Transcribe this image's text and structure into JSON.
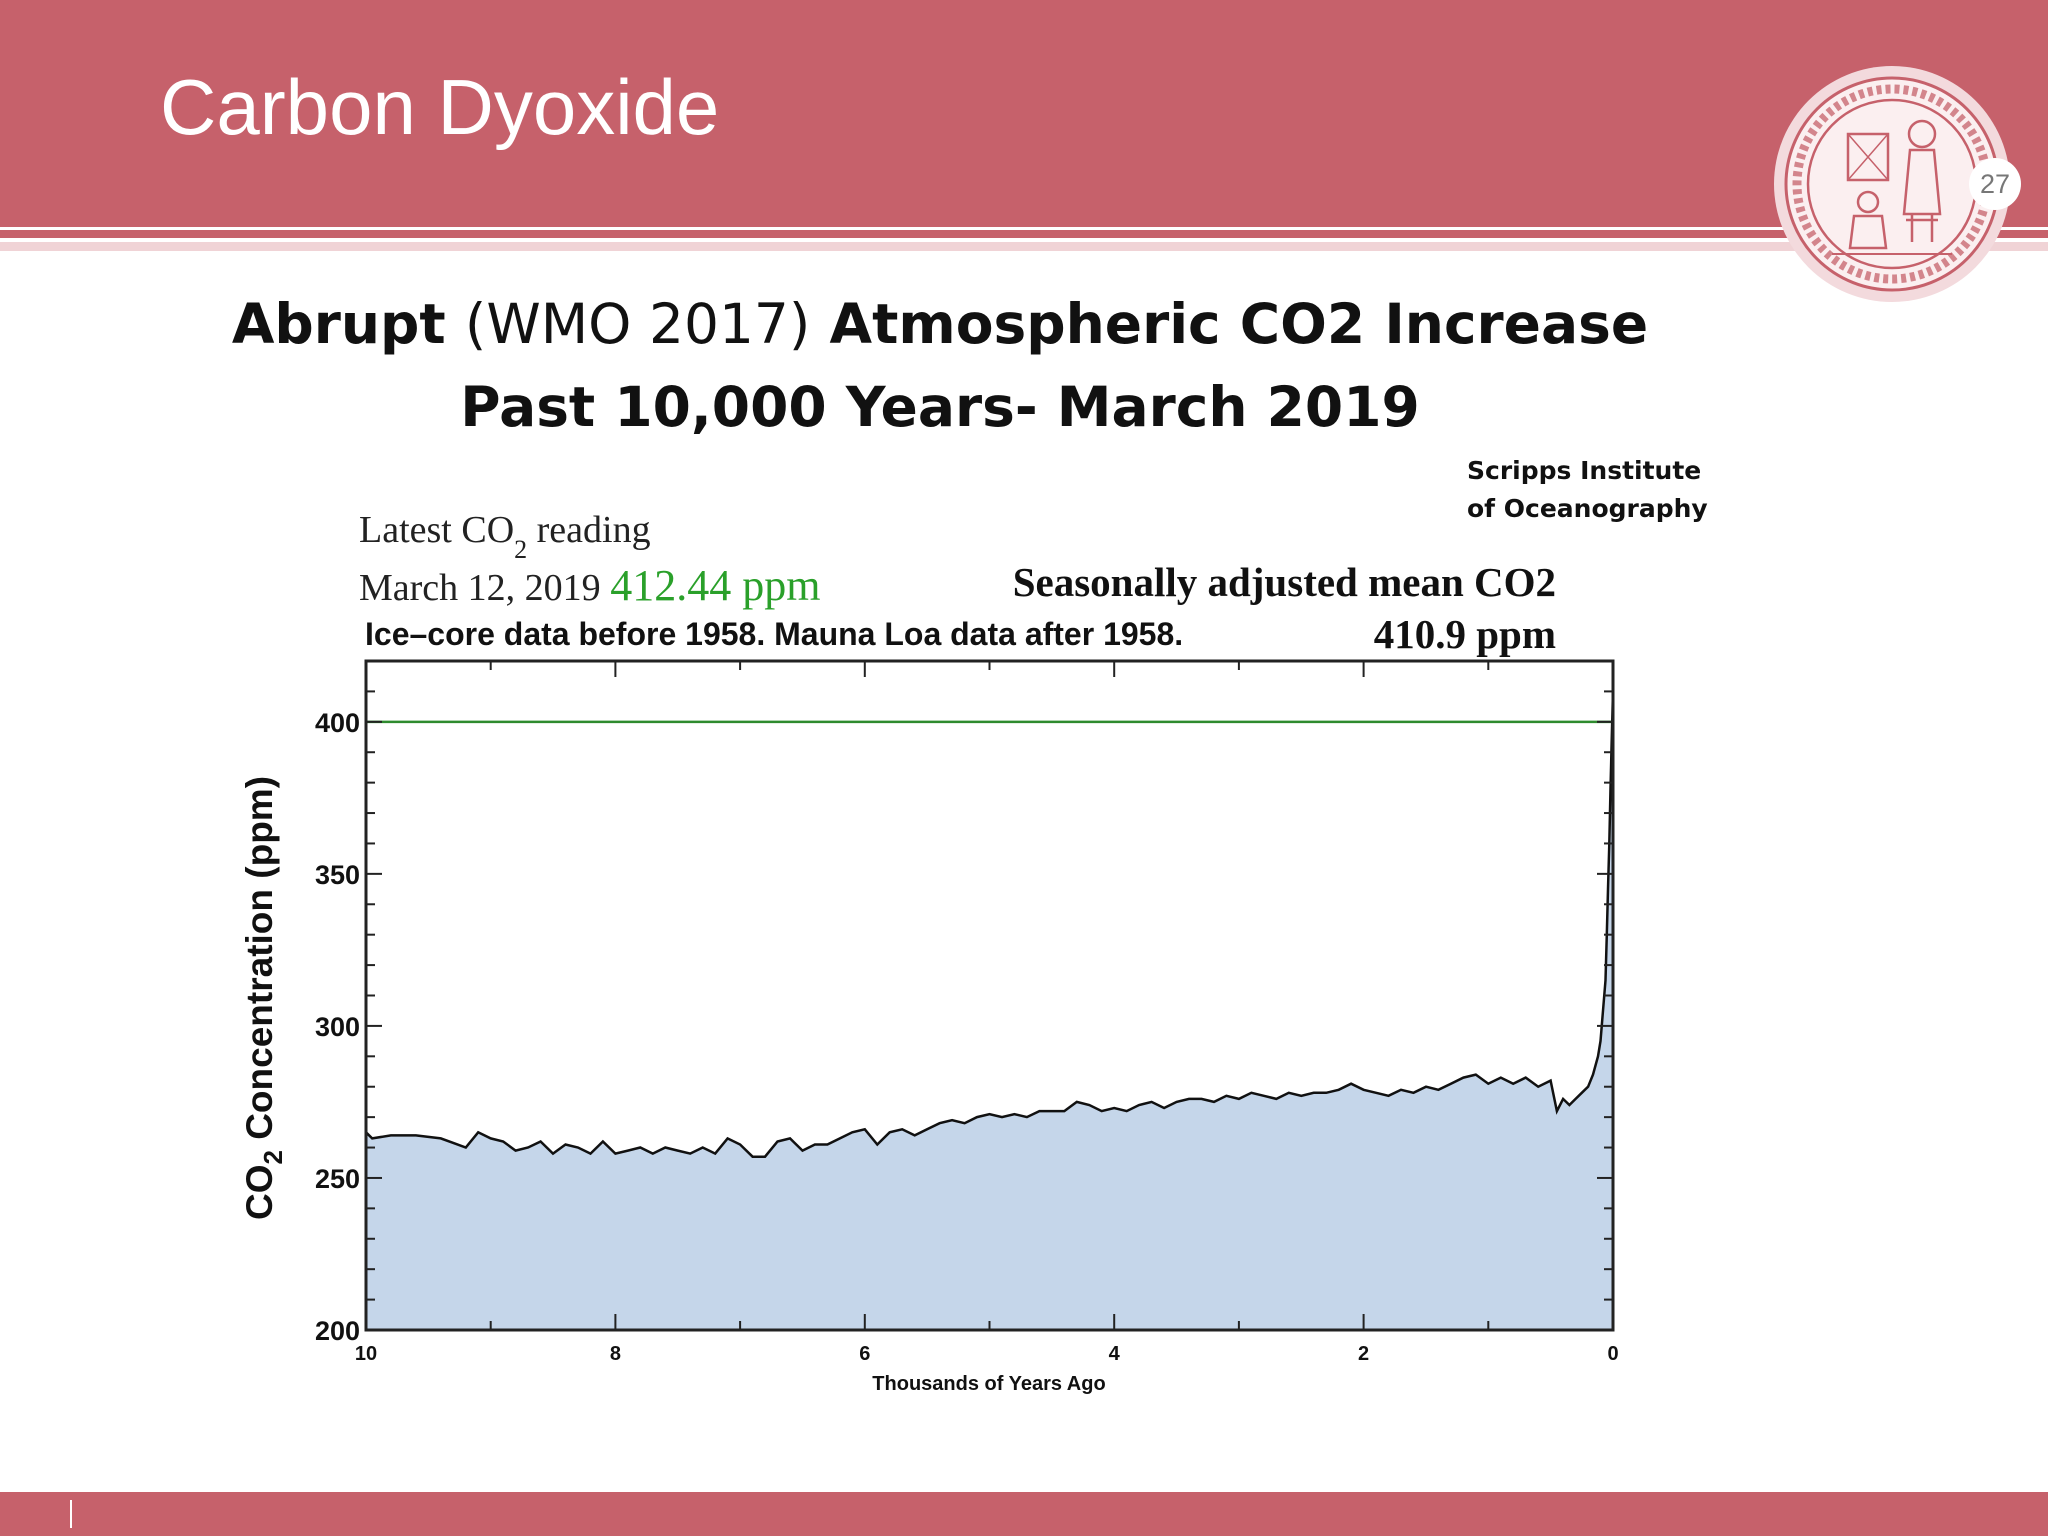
{
  "slide": {
    "title": "Carbon Dyoxide",
    "page_number": "27",
    "header_color": "#c6616b"
  },
  "figure": {
    "title_bold_1": "Abrupt",
    "title_light": "(WMO 2017)",
    "title_bold_2": "Atmospheric CO2 Increase",
    "title_line_2": "Past 10,000 Years- March 2019",
    "source_line_1": "Scripps Institute",
    "source_line_2": "of Oceanography",
    "latest_label_a": "Latest CO",
    "latest_label_sub": "2",
    "latest_label_b": " reading",
    "latest_date": "March 12, 2019",
    "latest_value": "412.44 ppm",
    "seasonal_label": "Seasonally adjusted mean CO2",
    "seasonal_value": "410.9 ppm",
    "data_note": "Ice–core data before 1958. Mauna Loa data after 1958."
  },
  "chart_data": {
    "type": "area",
    "title": "",
    "xlabel": "Thousands of Years Ago",
    "ylabel_a": "CO",
    "ylabel_sub": "2",
    "ylabel_b": " Concentration (ppm)",
    "xlim": [
      10,
      0
    ],
    "ylim": [
      200,
      420
    ],
    "x_ticks": [
      "10",
      "8",
      "6",
      "4",
      "2",
      "0"
    ],
    "x_tick_values": [
      10,
      8,
      6,
      4,
      2,
      0
    ],
    "y_ticks": [
      "200",
      "250",
      "300",
      "350",
      "400"
    ],
    "y_tick_values": [
      200,
      250,
      300,
      350,
      400
    ],
    "reference_line": {
      "y": 400,
      "color": "#2e8b2e"
    },
    "fill_color": "#c5d6ea",
    "line_color": "#111111",
    "grid": false,
    "series": [
      {
        "x": [
          10,
          9.95,
          9.8,
          9.6,
          9.4,
          9.2,
          9.1,
          9.0,
          8.9,
          8.8,
          8.7,
          8.6,
          8.5,
          8.4,
          8.3,
          8.2,
          8.1,
          8.0,
          7.9,
          7.8,
          7.7,
          7.6,
          7.5,
          7.4,
          7.3,
          7.2,
          7.1,
          7.0,
          6.9,
          6.8,
          6.7,
          6.6,
          6.5,
          6.4,
          6.3,
          6.2,
          6.1,
          6.0,
          5.9,
          5.8,
          5.7,
          5.6,
          5.5,
          5.4,
          5.3,
          5.2,
          5.1,
          5.0,
          4.9,
          4.8,
          4.7,
          4.6,
          4.5,
          4.4,
          4.3,
          4.2,
          4.1,
          4.0,
          3.9,
          3.8,
          3.7,
          3.6,
          3.5,
          3.4,
          3.3,
          3.2,
          3.1,
          3.0,
          2.9,
          2.8,
          2.7,
          2.6,
          2.5,
          2.4,
          2.3,
          2.2,
          2.1,
          2.0,
          1.9,
          1.8,
          1.7,
          1.6,
          1.5,
          1.4,
          1.3,
          1.2,
          1.1,
          1.0,
          0.9,
          0.8,
          0.7,
          0.6,
          0.5,
          0.45,
          0.4,
          0.35,
          0.3,
          0.25,
          0.2,
          0.16,
          0.12,
          0.1,
          0.08,
          0.06,
          0.05,
          0.04,
          0.03,
          0.02,
          0.01,
          0.0
        ],
        "y": [
          265,
          263,
          264,
          264,
          263,
          260,
          265,
          263,
          262,
          259,
          260,
          262,
          258,
          261,
          260,
          258,
          262,
          258,
          259,
          260,
          258,
          260,
          259,
          258,
          260,
          258,
          263,
          261,
          257,
          257,
          262,
          263,
          259,
          261,
          261,
          263,
          265,
          266,
          261,
          265,
          266,
          264,
          266,
          268,
          269,
          268,
          270,
          271,
          270,
          271,
          270,
          272,
          272,
          272,
          275,
          274,
          272,
          273,
          272,
          274,
          275,
          273,
          275,
          276,
          276,
          275,
          277,
          276,
          278,
          277,
          276,
          278,
          277,
          278,
          278,
          279,
          281,
          279,
          278,
          277,
          279,
          278,
          280,
          279,
          281,
          283,
          284,
          281,
          283,
          281,
          283,
          280,
          282,
          272,
          276,
          274,
          276,
          278,
          280,
          284,
          290,
          295,
          305,
          315,
          330,
          345,
          360,
          378,
          395,
          410
        ]
      }
    ]
  }
}
